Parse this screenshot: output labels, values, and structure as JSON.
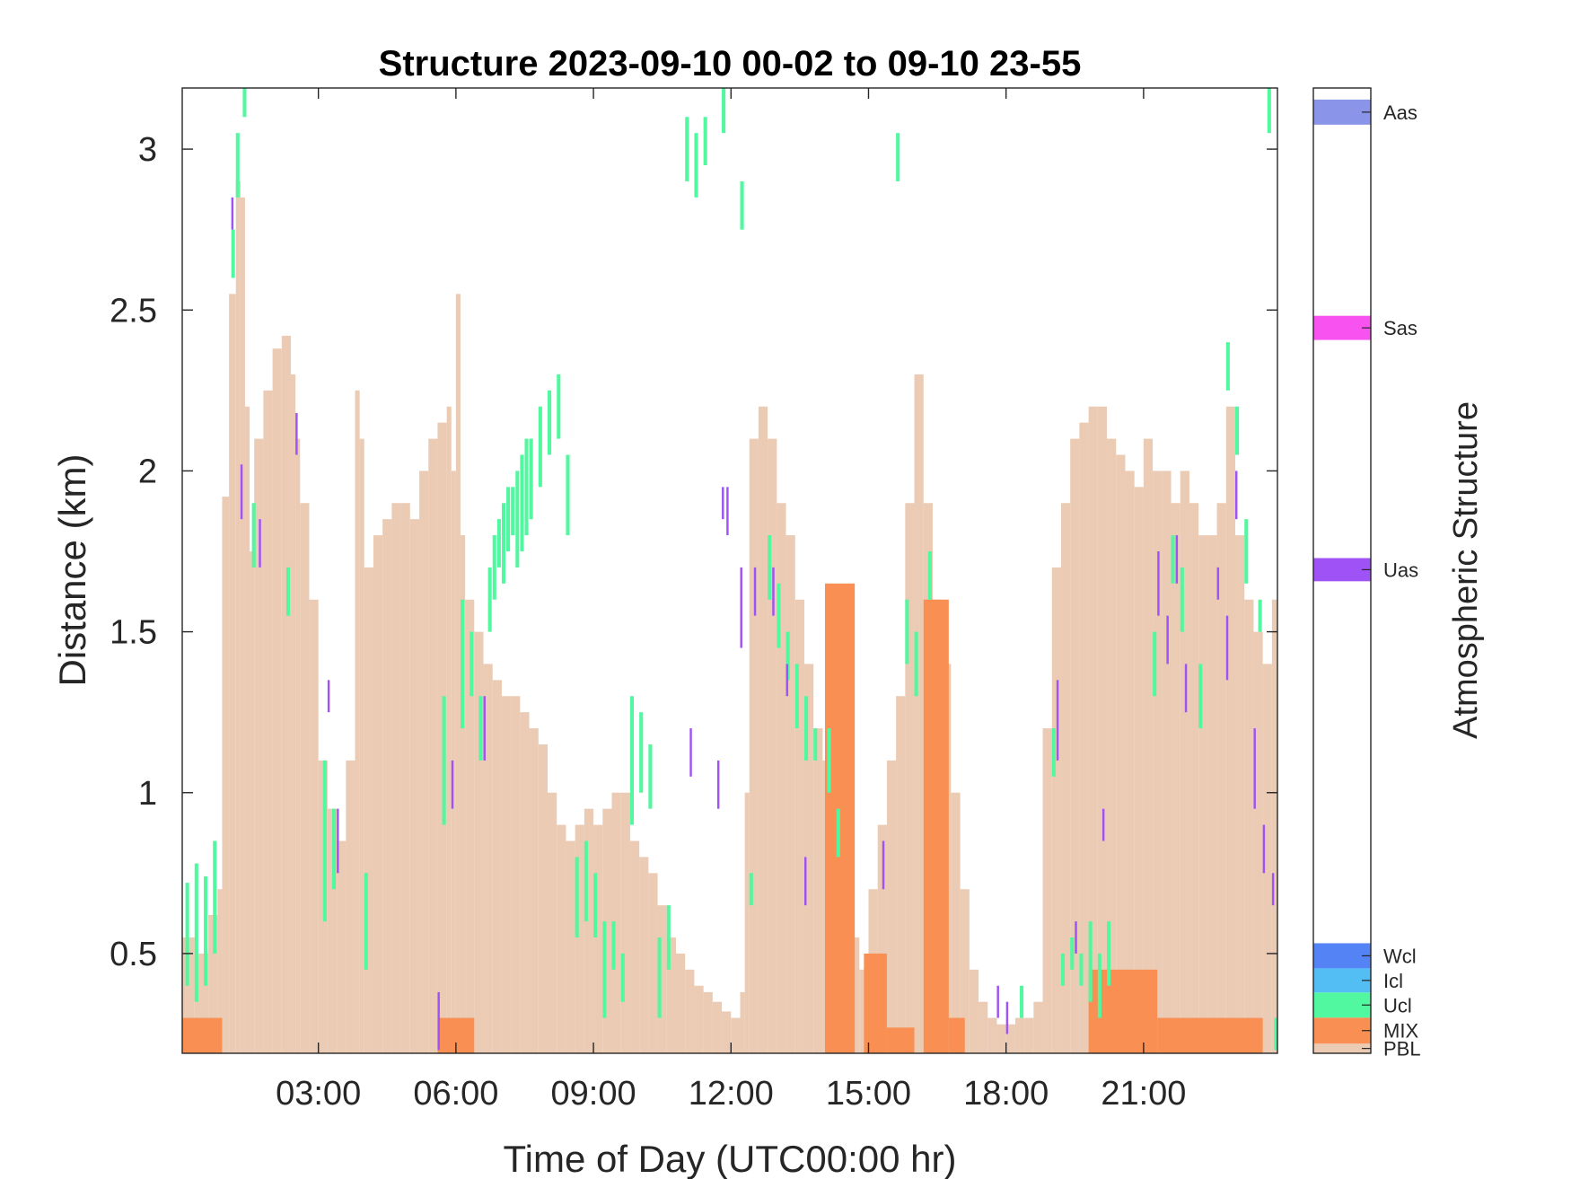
{
  "chart_data": {
    "type": "heatmap",
    "title": "Structure 2023-09-10 00-02 to 09-10 23-55",
    "xlabel": "Time of Day (UTC00:00 hr)",
    "ylabel": "Distance (km)",
    "xlim_hours": [
      0.03,
      23.92
    ],
    "ylim": [
      0.19,
      3.19
    ],
    "x_ticks": [
      {
        "value": 3,
        "label": "03:00"
      },
      {
        "value": 6,
        "label": "06:00"
      },
      {
        "value": 9,
        "label": "09:00"
      },
      {
        "value": 12,
        "label": "12:00"
      },
      {
        "value": 15,
        "label": "15:00"
      },
      {
        "value": 18,
        "label": "18:00"
      },
      {
        "value": 21,
        "label": "21:00"
      }
    ],
    "y_ticks": [
      {
        "value": 0.5,
        "label": "0.5"
      },
      {
        "value": 1,
        "label": "1"
      },
      {
        "value": 1.5,
        "label": "1.5"
      },
      {
        "value": 2,
        "label": "2"
      },
      {
        "value": 2.5,
        "label": "2.5"
      },
      {
        "value": 3,
        "label": "3"
      }
    ],
    "grid": false,
    "colorbar": {
      "title": "Atmospheric Structure",
      "classes": [
        {
          "label": "PBL",
          "color": "#ebcbb4"
        },
        {
          "label": "MIX",
          "color": "#f98f52"
        },
        {
          "label": "Ucl",
          "color": "#52f8a0"
        },
        {
          "label": "Icl",
          "color": "#53bef4"
        },
        {
          "label": "Wcl",
          "color": "#5483f5"
        },
        {
          "label": "Uas",
          "color": "#9f52f5"
        },
        {
          "label": "Sas",
          "color": "#f853f0"
        },
        {
          "label": "Aas",
          "color": "#8a95e9"
        }
      ]
    },
    "pbl_top_km": [
      [
        0.03,
        0.55
      ],
      [
        0.3,
        0.5
      ],
      [
        0.6,
        0.62
      ],
      [
        0.8,
        0.7
      ],
      [
        0.9,
        1.92
      ],
      [
        1.05,
        2.55
      ],
      [
        1.2,
        2.9
      ],
      [
        1.3,
        2.85
      ],
      [
        1.4,
        2.2
      ],
      [
        1.5,
        1.75
      ],
      [
        1.6,
        2.1
      ],
      [
        1.8,
        2.25
      ],
      [
        2.0,
        2.38
      ],
      [
        2.2,
        2.42
      ],
      [
        2.4,
        2.3
      ],
      [
        2.5,
        2.1
      ],
      [
        2.6,
        1.9
      ],
      [
        2.8,
        1.6
      ],
      [
        3.0,
        1.1
      ],
      [
        3.2,
        0.95
      ],
      [
        3.4,
        0.85
      ],
      [
        3.6,
        1.1
      ],
      [
        3.8,
        2.25
      ],
      [
        3.9,
        2.1
      ],
      [
        4.0,
        1.7
      ],
      [
        4.2,
        1.8
      ],
      [
        4.4,
        1.85
      ],
      [
        4.6,
        1.9
      ],
      [
        4.8,
        1.9
      ],
      [
        5.0,
        1.85
      ],
      [
        5.2,
        2.0
      ],
      [
        5.4,
        2.1
      ],
      [
        5.6,
        2.15
      ],
      [
        5.8,
        2.2
      ],
      [
        5.9,
        2.0
      ],
      [
        6.0,
        2.55
      ],
      [
        6.1,
        1.8
      ],
      [
        6.2,
        1.6
      ],
      [
        6.4,
        1.5
      ],
      [
        6.6,
        1.4
      ],
      [
        6.8,
        1.35
      ],
      [
        7.0,
        1.3
      ],
      [
        7.2,
        1.3
      ],
      [
        7.4,
        1.25
      ],
      [
        7.6,
        1.2
      ],
      [
        7.8,
        1.15
      ],
      [
        8.0,
        1.0
      ],
      [
        8.2,
        0.9
      ],
      [
        8.4,
        0.85
      ],
      [
        8.6,
        0.9
      ],
      [
        8.8,
        0.95
      ],
      [
        9.0,
        0.9
      ],
      [
        9.2,
        0.95
      ],
      [
        9.4,
        1.0
      ],
      [
        9.6,
        1.0
      ],
      [
        9.8,
        0.85
      ],
      [
        10.0,
        0.8
      ],
      [
        10.2,
        0.75
      ],
      [
        10.4,
        0.65
      ],
      [
        10.6,
        0.55
      ],
      [
        10.8,
        0.5
      ],
      [
        11.0,
        0.45
      ],
      [
        11.2,
        0.4
      ],
      [
        11.4,
        0.38
      ],
      [
        11.6,
        0.35
      ],
      [
        11.8,
        0.32
      ],
      [
        12.0,
        0.3
      ],
      [
        12.2,
        0.38
      ],
      [
        12.3,
        1.0
      ],
      [
        12.4,
        2.1
      ],
      [
        12.6,
        2.2
      ],
      [
        12.8,
        2.1
      ],
      [
        13.0,
        1.9
      ],
      [
        13.2,
        1.8
      ],
      [
        13.4,
        1.6
      ],
      [
        13.6,
        1.4
      ],
      [
        13.8,
        1.2
      ],
      [
        14.0,
        1.1
      ],
      [
        14.2,
        1.0
      ],
      [
        14.4,
        0.8
      ],
      [
        14.6,
        0.55
      ],
      [
        14.8,
        0.45
      ],
      [
        15.0,
        0.7
      ],
      [
        15.2,
        0.9
      ],
      [
        15.4,
        1.1
      ],
      [
        15.6,
        1.3
      ],
      [
        15.8,
        1.9
      ],
      [
        16.0,
        2.3
      ],
      [
        16.2,
        1.9
      ],
      [
        16.4,
        1.6
      ],
      [
        16.6,
        1.4
      ],
      [
        16.8,
        1.0
      ],
      [
        17.0,
        0.7
      ],
      [
        17.2,
        0.45
      ],
      [
        17.4,
        0.35
      ],
      [
        17.6,
        0.3
      ],
      [
        17.8,
        0.28
      ],
      [
        18.0,
        0.28
      ],
      [
        18.2,
        0.3
      ],
      [
        18.4,
        0.3
      ],
      [
        18.6,
        0.35
      ],
      [
        18.8,
        1.2
      ],
      [
        19.0,
        1.7
      ],
      [
        19.2,
        1.9
      ],
      [
        19.4,
        2.1
      ],
      [
        19.6,
        2.15
      ],
      [
        19.8,
        2.2
      ],
      [
        20.0,
        2.2
      ],
      [
        20.2,
        2.1
      ],
      [
        20.4,
        2.05
      ],
      [
        20.6,
        2.0
      ],
      [
        20.8,
        1.95
      ],
      [
        21.0,
        2.1
      ],
      [
        21.2,
        2.0
      ],
      [
        21.4,
        2.0
      ],
      [
        21.6,
        1.9
      ],
      [
        21.8,
        2.0
      ],
      [
        22.0,
        1.9
      ],
      [
        22.2,
        1.8
      ],
      [
        22.4,
        1.8
      ],
      [
        22.6,
        1.9
      ],
      [
        22.8,
        2.2
      ],
      [
        23.0,
        1.8
      ],
      [
        23.2,
        1.6
      ],
      [
        23.4,
        1.5
      ],
      [
        23.6,
        1.4
      ],
      [
        23.8,
        1.6
      ],
      [
        23.92,
        1.6
      ]
    ],
    "mix_segments": [
      {
        "start": 14.05,
        "end": 14.7,
        "top": 1.65
      },
      {
        "start": 14.3,
        "end": 14.6,
        "top": 1.4
      },
      {
        "start": 14.9,
        "end": 15.4,
        "top": 0.5
      },
      {
        "start": 15.4,
        "end": 16.0,
        "top": 0.27
      },
      {
        "start": 16.2,
        "end": 16.75,
        "top": 1.6
      },
      {
        "start": 16.75,
        "end": 17.1,
        "top": 0.3
      },
      {
        "start": 19.8,
        "end": 21.3,
        "top": 0.45
      },
      {
        "start": 21.3,
        "end": 23.6,
        "top": 0.3
      },
      {
        "start": 0.03,
        "end": 0.9,
        "top": 0.3
      },
      {
        "start": 5.6,
        "end": 6.4,
        "top": 0.3
      }
    ],
    "ucl_cells": [
      [
        0.1,
        0.4,
        0.72
      ],
      [
        0.3,
        0.35,
        0.78
      ],
      [
        0.5,
        0.4,
        0.74
      ],
      [
        0.7,
        0.5,
        0.85
      ],
      [
        1.1,
        2.6,
        2.75
      ],
      [
        1.2,
        2.85,
        3.05
      ],
      [
        1.35,
        3.1,
        3.2
      ],
      [
        1.55,
        1.7,
        1.9
      ],
      [
        2.3,
        1.55,
        1.7
      ],
      [
        3.1,
        0.6,
        1.1
      ],
      [
        3.3,
        0.7,
        0.95
      ],
      [
        4.0,
        0.45,
        0.75
      ],
      [
        5.7,
        0.9,
        1.3
      ],
      [
        6.1,
        1.2,
        1.6
      ],
      [
        6.3,
        1.3,
        1.5
      ],
      [
        6.5,
        1.1,
        1.3
      ],
      [
        6.7,
        1.5,
        1.7
      ],
      [
        6.8,
        1.6,
        1.8
      ],
      [
        6.9,
        1.7,
        1.85
      ],
      [
        7.0,
        1.65,
        1.9
      ],
      [
        7.1,
        1.75,
        1.95
      ],
      [
        7.2,
        1.8,
        1.95
      ],
      [
        7.3,
        1.7,
        2.0
      ],
      [
        7.4,
        1.75,
        2.05
      ],
      [
        7.5,
        1.8,
        2.1
      ],
      [
        7.6,
        1.85,
        2.1
      ],
      [
        7.8,
        1.95,
        2.2
      ],
      [
        8.0,
        2.05,
        2.25
      ],
      [
        8.2,
        2.1,
        2.3
      ],
      [
        8.4,
        1.8,
        2.05
      ],
      [
        8.6,
        0.55,
        0.8
      ],
      [
        8.8,
        0.6,
        0.85
      ],
      [
        9.0,
        0.55,
        0.75
      ],
      [
        9.2,
        0.3,
        0.6
      ],
      [
        9.4,
        0.45,
        0.6
      ],
      [
        9.6,
        0.35,
        0.5
      ],
      [
        9.8,
        0.9,
        1.3
      ],
      [
        10.0,
        1.0,
        1.25
      ],
      [
        10.2,
        0.95,
        1.15
      ],
      [
        10.4,
        0.3,
        0.55
      ],
      [
        10.6,
        0.45,
        0.65
      ],
      [
        11.0,
        2.9,
        3.1
      ],
      [
        11.2,
        2.85,
        3.05
      ],
      [
        11.4,
        2.95,
        3.1
      ],
      [
        11.8,
        3.05,
        3.2
      ],
      [
        12.4,
        0.65,
        0.75
      ],
      [
        12.8,
        1.6,
        1.8
      ],
      [
        13.0,
        1.45,
        1.65
      ],
      [
        13.2,
        1.35,
        1.5
      ],
      [
        13.4,
        1.2,
        1.4
      ],
      [
        13.6,
        1.1,
        1.3
      ],
      [
        13.8,
        1.1,
        1.2
      ],
      [
        14.1,
        1.0,
        1.2
      ],
      [
        14.3,
        0.8,
        0.95
      ],
      [
        15.8,
        1.4,
        1.6
      ],
      [
        16.0,
        1.3,
        1.5
      ],
      [
        16.3,
        1.6,
        1.75
      ],
      [
        18.3,
        0.3,
        0.4
      ],
      [
        19.0,
        1.05,
        1.2
      ],
      [
        19.2,
        0.4,
        0.5
      ],
      [
        19.4,
        0.45,
        0.55
      ],
      [
        19.6,
        0.4,
        0.5
      ],
      [
        19.8,
        0.35,
        0.6
      ],
      [
        20.0,
        0.3,
        0.5
      ],
      [
        20.2,
        0.4,
        0.6
      ],
      [
        21.2,
        1.3,
        1.5
      ],
      [
        21.6,
        1.65,
        1.8
      ],
      [
        21.8,
        1.5,
        1.7
      ],
      [
        22.2,
        1.2,
        1.4
      ],
      [
        22.8,
        2.25,
        2.4
      ],
      [
        23.0,
        2.05,
        2.2
      ],
      [
        23.2,
        1.65,
        1.85
      ],
      [
        23.5,
        1.5,
        1.6
      ],
      [
        23.7,
        3.05,
        3.2
      ],
      [
        23.85,
        0.2,
        0.3
      ],
      [
        12.2,
        2.75,
        2.9
      ],
      [
        15.6,
        2.9,
        3.05
      ]
    ],
    "uas_cells": [
      [
        1.1,
        2.75,
        2.85
      ],
      [
        1.3,
        1.85,
        2.02
      ],
      [
        1.7,
        1.7,
        1.85
      ],
      [
        2.5,
        2.05,
        2.18
      ],
      [
        3.2,
        1.25,
        1.35
      ],
      [
        3.4,
        0.75,
        0.95
      ],
      [
        5.6,
        0.2,
        0.38
      ],
      [
        5.9,
        0.95,
        1.1
      ],
      [
        6.6,
        1.1,
        1.3
      ],
      [
        11.1,
        1.05,
        1.2
      ],
      [
        11.7,
        0.95,
        1.1
      ],
      [
        11.8,
        1.85,
        1.95
      ],
      [
        11.9,
        1.8,
        1.95
      ],
      [
        12.2,
        1.45,
        1.7
      ],
      [
        12.5,
        1.55,
        1.7
      ],
      [
        12.9,
        1.55,
        1.7
      ],
      [
        13.2,
        1.3,
        1.4
      ],
      [
        13.6,
        0.65,
        0.8
      ],
      [
        15.3,
        0.7,
        0.85
      ],
      [
        17.8,
        0.3,
        0.4
      ],
      [
        18.0,
        0.25,
        0.35
      ],
      [
        19.1,
        1.1,
        1.35
      ],
      [
        19.5,
        0.5,
        0.6
      ],
      [
        20.1,
        0.85,
        0.95
      ],
      [
        21.3,
        1.55,
        1.75
      ],
      [
        21.5,
        1.4,
        1.55
      ],
      [
        21.7,
        1.65,
        1.8
      ],
      [
        21.9,
        1.25,
        1.4
      ],
      [
        22.6,
        1.6,
        1.7
      ],
      [
        22.8,
        1.35,
        1.55
      ],
      [
        23.0,
        2.0,
        1.85
      ],
      [
        23.4,
        0.95,
        1.2
      ],
      [
        23.6,
        0.75,
        0.9
      ],
      [
        23.8,
        0.65,
        0.75
      ]
    ]
  }
}
